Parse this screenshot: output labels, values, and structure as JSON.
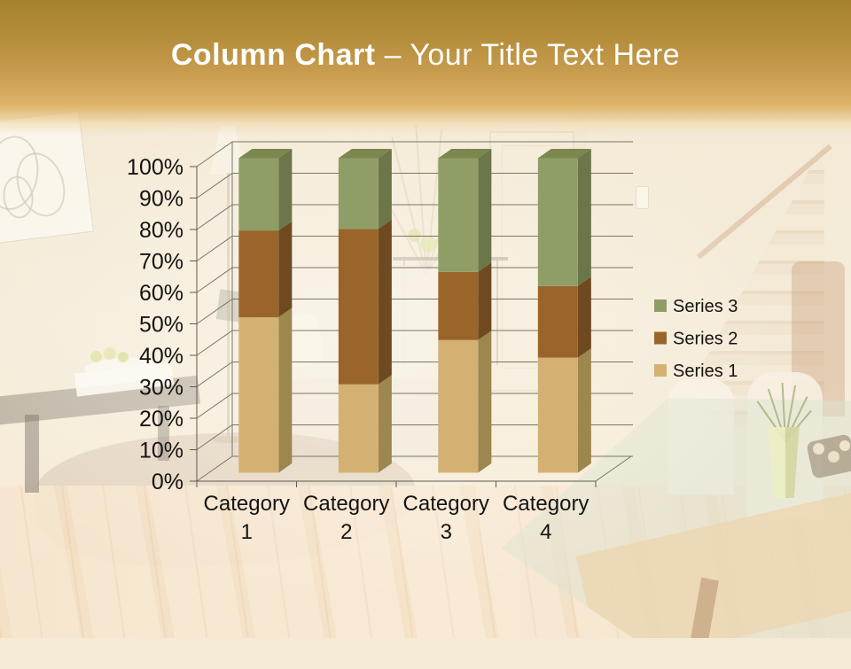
{
  "slide": {
    "title": {
      "bold": "Column Chart",
      "rest": " – Your Title Text Here"
    }
  },
  "chart_data": {
    "type": "bar",
    "variant": "3d-100-percent-stacked-column",
    "title": "",
    "categories": [
      "Category 1",
      "Category 2",
      "Category 3",
      "Category 4"
    ],
    "series": [
      {
        "name": "Series 1",
        "values": [
          4.3,
          2.5,
          3.5,
          4.5
        ],
        "percent_of_total": [
          49.4,
          28.1,
          42.2,
          36.6
        ],
        "front_color": "#d2b173",
        "side_color": "#9d874f",
        "top_color": "#b59a5e"
      },
      {
        "name": "Series 2",
        "values": [
          2.4,
          4.4,
          1.8,
          2.8
        ],
        "percent_of_total": [
          27.6,
          49.4,
          21.7,
          22.8
        ],
        "front_color": "#9a652a",
        "side_color": "#6f4a20",
        "top_color": "#855523"
      },
      {
        "name": "Series 3",
        "values": [
          2.0,
          2.0,
          3.0,
          5.0
        ],
        "percent_of_total": [
          23.0,
          22.5,
          36.1,
          40.7
        ],
        "front_color": "#8f9e67",
        "side_color": "#6b7649",
        "top_color": "#7a874f"
      }
    ],
    "y_axis": {
      "min": 0,
      "max": 100,
      "tick_step": 10,
      "tick_labels": [
        "0%",
        "10%",
        "20%",
        "30%",
        "40%",
        "50%",
        "60%",
        "70%",
        "80%",
        "90%",
        "100%"
      ]
    },
    "legend": {
      "position": "right",
      "order": [
        "Series 3",
        "Series 2",
        "Series 1"
      ]
    },
    "gridlines": true,
    "text_color": "#161412",
    "gridline_color": "#7a756c",
    "axis_color": "#5f5a52"
  }
}
